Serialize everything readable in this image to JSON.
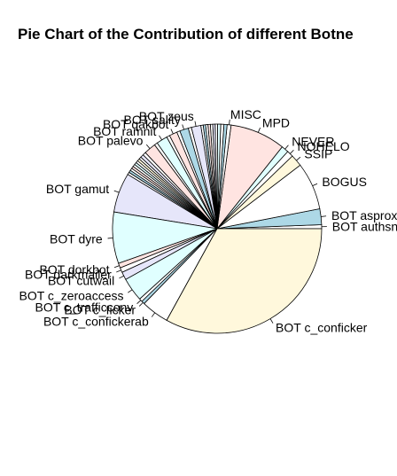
{
  "chart_data": {
    "type": "pie",
    "title": "Pie Chart of the Contribution of different Botne",
    "slices": [
      {
        "label": "BOT authsnow",
        "value": 0.5,
        "color": "#ffffff"
      },
      {
        "label": "BOT asprox",
        "value": 2.0,
        "color": "#add8e6"
      },
      {
        "label": "BOGUS",
        "value": 6.0,
        "color": "#ffffff"
      },
      {
        "label": "SSIP",
        "value": 1.5,
        "color": "#fff8dc"
      },
      {
        "label": "NOHELO",
        "value": 0.8,
        "color": "#ffffff"
      },
      {
        "label": "NEVER",
        "value": 0.9,
        "color": "#e0ffff"
      },
      {
        "label": "MPD",
        "value": 7.0,
        "color": "#ffe4e1"
      },
      {
        "label": "MISC",
        "value": 0.5,
        "color": "#ffffff"
      },
      {
        "label": "",
        "value": 0.4,
        "color": "#add8e6"
      },
      {
        "label": "",
        "value": 0.4,
        "color": "#ffffff"
      },
      {
        "label": "",
        "value": 0.4,
        "color": "#e0ffff"
      },
      {
        "label": "",
        "value": 0.3,
        "color": "#ffffff"
      },
      {
        "label": "",
        "value": 0.3,
        "color": "#e6e6fa"
      },
      {
        "label": "",
        "value": 0.3,
        "color": "#ffffff"
      },
      {
        "label": "",
        "value": 0.3,
        "color": "#ffe4e1"
      },
      {
        "label": "",
        "value": 0.3,
        "color": "#ffffff"
      },
      {
        "label": "",
        "value": 0.3,
        "color": "#add8e6"
      },
      {
        "label": "",
        "value": 0.3,
        "color": "#ffffff"
      },
      {
        "label": "BOT zeus",
        "value": 1.2,
        "color": "#e6e6fa"
      },
      {
        "label": "",
        "value": 0.4,
        "color": "#ffffff"
      },
      {
        "label": "BOT sality",
        "value": 1.1,
        "color": "#add8e6"
      },
      {
        "label": "",
        "value": 0.4,
        "color": "#ffffff"
      },
      {
        "label": "BOT qakbot",
        "value": 1.0,
        "color": "#ffe4e1"
      },
      {
        "label": "",
        "value": 0.4,
        "color": "#ffffff"
      },
      {
        "label": "BOT ramnit",
        "value": 1.4,
        "color": "#e0ffff"
      },
      {
        "label": "",
        "value": 0.4,
        "color": "#ffffff"
      },
      {
        "label": "BOT palevo",
        "value": 1.5,
        "color": "#ffe4e1"
      },
      {
        "label": "",
        "value": 0.4,
        "color": "#ffffff"
      },
      {
        "label": "",
        "value": 0.4,
        "color": "#e6e6fa"
      },
      {
        "label": "",
        "value": 0.3,
        "color": "#ffffff"
      },
      {
        "label": "",
        "value": 0.3,
        "color": "#fff8dc"
      },
      {
        "label": "",
        "value": 0.3,
        "color": "#ffffff"
      },
      {
        "label": "",
        "value": 0.3,
        "color": "#e0ffff"
      },
      {
        "label": "",
        "value": 0.3,
        "color": "#ffffff"
      },
      {
        "label": "",
        "value": 0.3,
        "color": "#ffe4e1"
      },
      {
        "label": "",
        "value": 0.3,
        "color": "#ffffff"
      },
      {
        "label": "",
        "value": 0.3,
        "color": "#add8e6"
      },
      {
        "label": "",
        "value": 0.3,
        "color": "#ffffff"
      },
      {
        "label": "BOT gamut",
        "value": 5.0,
        "color": "#e6e6fa"
      },
      {
        "label": "BOT dyre",
        "value": 6.5,
        "color": "#e0ffff"
      },
      {
        "label": "BOT dorkbot",
        "value": 0.6,
        "color": "#ffe4e1"
      },
      {
        "label": "BOT darkmailer",
        "value": 0.6,
        "color": "#ffffff"
      },
      {
        "label": "BOT cutwail",
        "value": 1.0,
        "color": "#e6e6fa"
      },
      {
        "label": "BOT c_zeroaccess",
        "value": 3.0,
        "color": "#e0ffff"
      },
      {
        "label": "BOT c_trafficconv",
        "value": 0.4,
        "color": "#ffffff"
      },
      {
        "label": "BOT c_ficker",
        "value": 0.4,
        "color": "#add8e6"
      },
      {
        "label": "BOT c_confickerab",
        "value": 3.5,
        "color": "#ffffff"
      },
      {
        "label": "BOT c_conficker",
        "value": 27.0,
        "color": "#fff8dc"
      }
    ]
  }
}
